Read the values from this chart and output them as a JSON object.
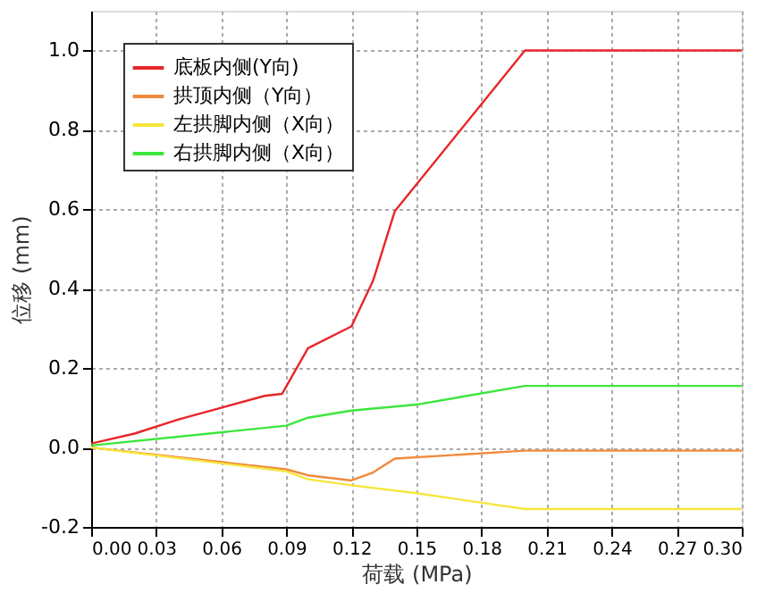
{
  "chart_data": {
    "type": "line",
    "xlabel": "荷载 (MPa)",
    "ylabel": "位移 (mm)",
    "xlim": [
      0,
      0.3
    ],
    "xticks": [
      {
        "value": 0,
        "label": "0.00"
      },
      {
        "value": 0.03,
        "label": "0.03"
      },
      {
        "value": 0.06,
        "label": "0.06"
      },
      {
        "value": 0.09,
        "label": "0.09"
      },
      {
        "value": 0.12,
        "label": "0.12"
      },
      {
        "value": 0.15,
        "label": "0.15"
      },
      {
        "value": 0.18,
        "label": "0.18"
      },
      {
        "value": 0.21,
        "label": "0.21"
      },
      {
        "value": 0.24,
        "label": "0.24"
      },
      {
        "value": 0.27,
        "label": "0.27"
      },
      {
        "value": 0.3,
        "label": "0.30"
      }
    ],
    "ylim": [
      -0.2,
      1.1
    ],
    "yticks": [
      {
        "value": -0.2,
        "label": "-0.2"
      },
      {
        "value": 0,
        "label": "0.0"
      },
      {
        "value": 0.2,
        "label": "0.2"
      },
      {
        "value": 0.4,
        "label": "0.4"
      },
      {
        "value": 0.6,
        "label": "0.6"
      },
      {
        "value": 0.8,
        "label": "0.8"
      },
      {
        "value": 1.0,
        "label": "1.0"
      }
    ],
    "grid": true,
    "legend": "top left",
    "line_style": "solid",
    "marker": "none",
    "series": [
      {
        "name": "底板内侧(Y向)",
        "color": "#e8262a",
        "x": [
          0,
          0.02,
          0.04,
          0.08,
          0.088,
          0.1,
          0.12,
          0.13,
          0.14,
          0.2,
          0.3
        ],
        "values": [
          0.01,
          0.035,
          0.07,
          0.13,
          0.135,
          0.25,
          0.305,
          0.42,
          0.595,
          1.0,
          1.0
        ]
      },
      {
        "name": "拱顶内侧（Y向）",
        "color": "#f08a3c",
        "x": [
          0,
          0.09,
          0.1,
          0.12,
          0.13,
          0.14,
          0.2,
          0.3
        ],
        "values": [
          0,
          -0.055,
          -0.07,
          -0.083,
          -0.063,
          -0.028,
          -0.008,
          -0.008
        ]
      },
      {
        "name": "左拱脚内侧（X向）",
        "color": "#f5e63c",
        "x": [
          0,
          0.09,
          0.1,
          0.12,
          0.15,
          0.2,
          0.3
        ],
        "values": [
          0,
          -0.06,
          -0.08,
          -0.095,
          -0.115,
          -0.155,
          -0.155
        ]
      },
      {
        "name": "右拱脚内侧（X向）",
        "color": "#3ce63c",
        "x": [
          0,
          0.09,
          0.1,
          0.12,
          0.15,
          0.2,
          0.3
        ],
        "values": [
          0.005,
          0.055,
          0.075,
          0.093,
          0.108,
          0.155,
          0.155
        ]
      }
    ]
  }
}
